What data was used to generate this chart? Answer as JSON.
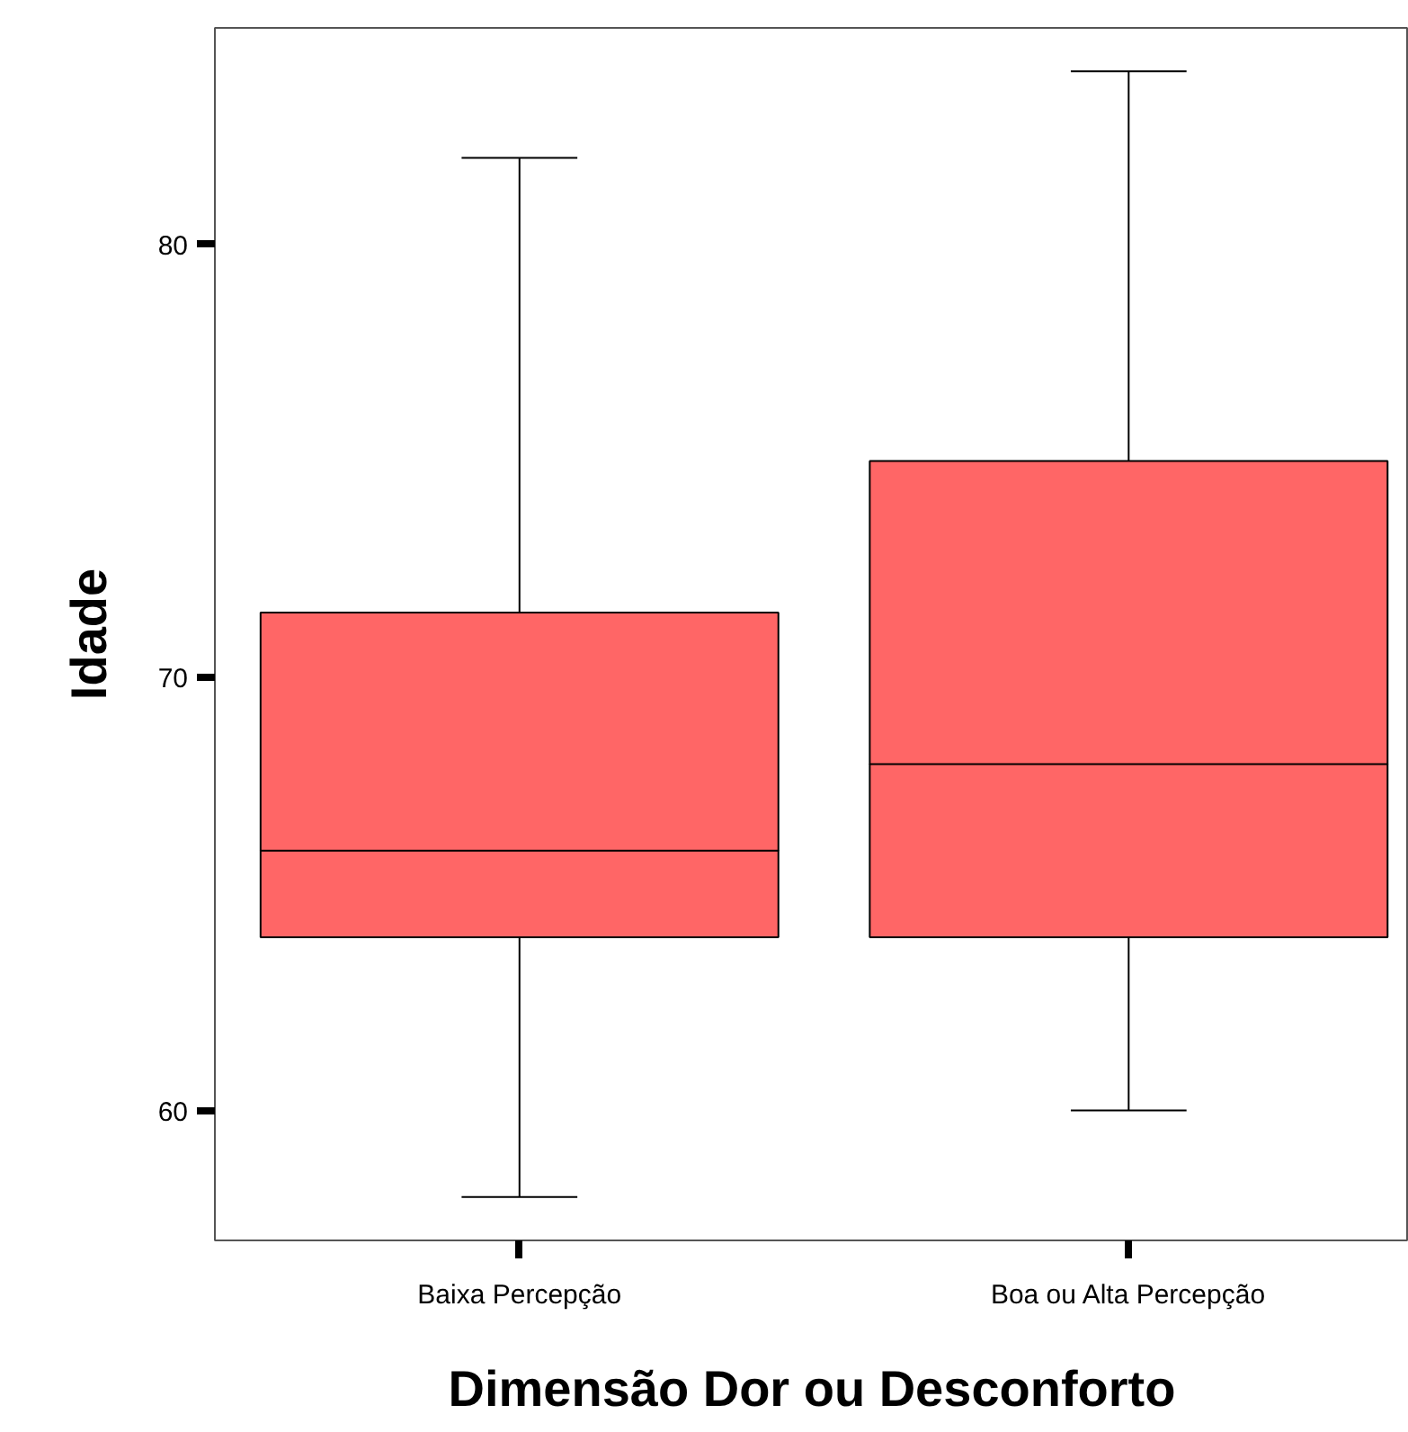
{
  "chart_data": {
    "type": "box",
    "xlabel": "Dimensão Dor ou Desconforto",
    "ylabel": "Idade",
    "categories": [
      "Baixa Percepção",
      "Boa ou Alta Percepção"
    ],
    "color": "#ff6666",
    "boxes": [
      {
        "low": 58,
        "q1": 64,
        "median": 66,
        "q3": 71.5,
        "high": 82
      },
      {
        "low": 60,
        "q1": 64,
        "median": 68,
        "q3": 75,
        "high": 84
      }
    ],
    "ylim": [
      57,
      85
    ],
    "yticks": [
      60,
      70,
      80
    ],
    "grid": false
  }
}
